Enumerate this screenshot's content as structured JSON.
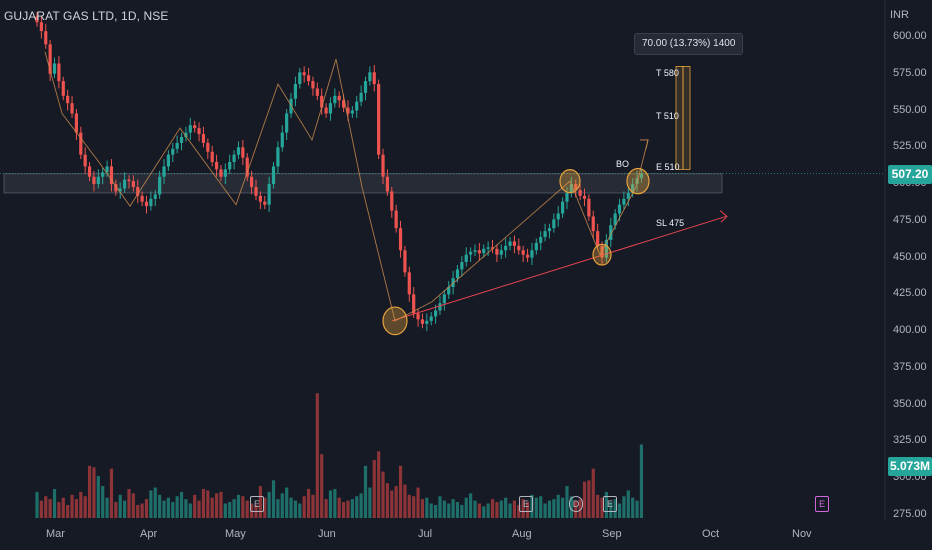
{
  "symbol_title": "GUJARAT GAS LTD, 1D, NSE",
  "currency": "INR",
  "last_price": "507.20",
  "last_volume": "5.073M",
  "measure_label": "70.00 (13.73%) 1400",
  "annotations": {
    "t580": "T 580",
    "t510": "T 510",
    "e510": "E 510",
    "bo": "BO",
    "sl475": "SL 475"
  },
  "events": [
    {
      "label": "E",
      "month_pos": "May"
    },
    {
      "label": "E",
      "month_pos": "Aug"
    },
    {
      "label": "D",
      "month_pos": "Aug"
    },
    {
      "label": "E",
      "month_pos": "Sep"
    },
    {
      "label": "E",
      "month_pos": "Nov"
    }
  ],
  "colors": {
    "up": "#26a69a",
    "down": "#ef5350",
    "vol_up": "#1e6f69",
    "vol_down": "#8c3438",
    "support_line": "#e8454f",
    "zigzag": "#c98b4c",
    "circle": "#e6a23c",
    "price_tag": "#26a69a"
  },
  "chart_data": {
    "type": "candlestick",
    "title": "GUJARAT GAS LTD, 1D, NSE",
    "ylabel": "INR",
    "y_ticks": [
      600,
      575,
      550,
      525,
      500,
      475,
      450,
      425,
      400,
      375,
      350,
      325,
      300,
      275
    ],
    "y_tick_labels": [
      "600.00",
      "575.00",
      "550.00",
      "525.00",
      "500.00",
      "475.00",
      "450.00",
      "425.00",
      "400.00",
      "375.00",
      "350.00",
      "325.00",
      "300.00",
      "275.00"
    ],
    "ylim": [
      270,
      615
    ],
    "x_ticks": [
      "Mar",
      "Apr",
      "May",
      "Jun",
      "Jul",
      "Aug",
      "Sep",
      "Oct",
      "Nov"
    ],
    "grid": false,
    "closes": [
      610,
      604,
      595,
      575,
      582,
      570,
      560,
      555,
      548,
      535,
      520,
      512,
      505,
      500,
      505,
      508,
      512,
      500,
      495,
      497,
      503,
      502,
      498,
      492,
      488,
      485,
      490,
      493,
      505,
      512,
      520,
      524,
      528,
      532,
      535,
      540,
      538,
      534,
      528,
      522,
      515,
      510,
      505,
      510,
      515,
      520,
      525,
      518,
      505,
      498,
      492,
      488,
      486,
      500,
      512,
      525,
      535,
      548,
      558,
      568,
      576,
      574,
      570,
      565,
      560,
      552,
      548,
      555,
      560,
      557,
      552,
      548,
      550,
      556,
      562,
      570,
      576,
      568,
      520,
      505,
      495,
      482,
      470,
      455,
      440,
      425,
      412,
      408,
      405,
      407,
      410,
      414,
      419,
      425,
      430,
      436,
      442,
      447,
      452,
      454,
      455,
      453,
      456,
      457,
      456,
      452,
      455,
      458,
      461,
      458,
      455,
      452,
      450,
      455,
      460,
      464,
      468,
      470,
      476,
      480,
      488,
      494,
      500,
      496,
      492,
      490,
      478,
      468,
      458,
      450,
      462,
      472,
      480,
      486,
      490,
      494,
      500,
      504,
      507.2
    ],
    "volumes": [
      1.8,
      1.2,
      1.5,
      1.3,
      2.0,
      1.1,
      1.4,
      0.9,
      1.6,
      1.3,
      1.8,
      1.5,
      3.6,
      3.5,
      2.9,
      2.2,
      1.4,
      3.4,
      1.1,
      1.6,
      1.2,
      2.0,
      1.7,
      0.9,
      1.0,
      1.3,
      1.9,
      2.1,
      1.6,
      1.2,
      1.4,
      1.1,
      1.5,
      1.8,
      1.3,
      1.0,
      1.6,
      1.2,
      2.0,
      1.9,
      1.4,
      1.7,
      1.8,
      1.0,
      1.1,
      1.3,
      1.6,
      1.5,
      1.2,
      1.0,
      0.9,
      2.2,
      1.4,
      1.8,
      2.6,
      1.3,
      1.7,
      2.1,
      1.4,
      1.2,
      1.0,
      1.5,
      2.0,
      1.6,
      8.6,
      4.4,
      1.3,
      1.9,
      2.0,
      1.4,
      1.1,
      1.2,
      1.3,
      1.5,
      1.7,
      3.6,
      2.1,
      4.0,
      4.6,
      3.2,
      2.4,
      1.9,
      2.2,
      3.6,
      2.3,
      1.6,
      1.5,
      2.1,
      1.3,
      1.4,
      1.0,
      0.9,
      1.5,
      1.2,
      1.0,
      1.3,
      1.1,
      0.9,
      1.4,
      1.7,
      1.2,
      1.0,
      0.8,
      1.0,
      1.3,
      1.1,
      1.2,
      1.4,
      1.0,
      1.2,
      0.9,
      1.3,
      1.1,
      1.6,
      1.4,
      1.5,
      1.0,
      1.2,
      1.3,
      1.6,
      1.4,
      2.2,
      1.5,
      1.2,
      1.3,
      2.5,
      2.6,
      3.4,
      1.6,
      1.4,
      1.8,
      1.1,
      1.3,
      1.0,
      1.5,
      1.9,
      1.4,
      1.2,
      5.073
    ]
  }
}
